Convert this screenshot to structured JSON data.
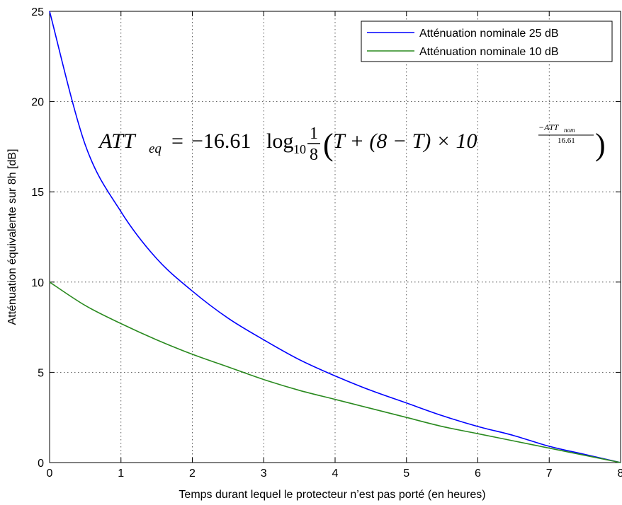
{
  "chart_data": {
    "type": "line",
    "title": "",
    "xlabel": "Temps durant lequel le protecteur n’est pas porté (en heures)",
    "ylabel": "Atténuation équivalente sur 8h [dB]",
    "xlim": [
      0,
      8
    ],
    "ylim": [
      0,
      25
    ],
    "x_ticks": [
      "0",
      "1",
      "2",
      "3",
      "4",
      "5",
      "6",
      "7",
      "8"
    ],
    "y_ticks": [
      "0",
      "5",
      "10",
      "15",
      "20",
      "25"
    ],
    "grid": true,
    "legend_position": "top-right",
    "x": [
      0,
      0.5,
      1,
      1.5,
      2,
      2.5,
      3,
      3.5,
      4,
      4.5,
      5,
      5.5,
      6,
      6.5,
      7,
      7.5,
      8
    ],
    "series": [
      {
        "name": "Atténuation nominale 25 dB",
        "color": "#0000ff",
        "values": [
          25.0,
          17.6,
          13.9,
          11.3,
          9.5,
          8.0,
          6.8,
          5.7,
          4.8,
          4.0,
          3.3,
          2.6,
          2.0,
          1.5,
          0.9,
          0.45,
          0.0
        ]
      },
      {
        "name": "Atténuation nominale 10 dB",
        "color": "#2a8a1f",
        "values": [
          10.0,
          8.7,
          7.7,
          6.8,
          6.0,
          5.3,
          4.6,
          4.0,
          3.5,
          3.0,
          2.5,
          2.0,
          1.6,
          1.2,
          0.8,
          0.4,
          0.0
        ]
      }
    ],
    "annotation": {
      "lhs": "ATT",
      "lhs_sub": "eq",
      "eq_sign": "=",
      "coef": "−16.61",
      "log": "log",
      "log_base": "10",
      "frac_num": "1",
      "frac_den": "8",
      "paren_open": "(",
      "paren_close": ")",
      "body": "T + (8 − T) × 10",
      "exp_num": "−ATT",
      "exp_num_sub": "nom",
      "exp_den": "16.61"
    }
  }
}
